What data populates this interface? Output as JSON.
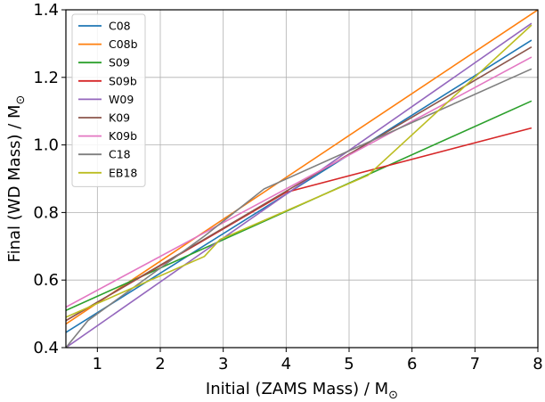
{
  "chart_data": {
    "type": "line",
    "xlabel": "Initial (ZAMS Mass) / M",
    "ylabel": "Final (WD Mass) / M",
    "unit_symbol": "⊙",
    "xlim": [
      0.5,
      8.0
    ],
    "ylim": [
      0.4,
      1.4
    ],
    "xticks": [
      1,
      2,
      3,
      4,
      5,
      6,
      7,
      8
    ],
    "yticks": [
      0.4,
      0.6,
      0.8,
      1.0,
      1.2,
      1.4
    ],
    "xtick_labels": [
      "1",
      "2",
      "3",
      "4",
      "5",
      "6",
      "7",
      "8"
    ],
    "ytick_labels": [
      "0.4",
      "0.6",
      "0.8",
      "1.0",
      "1.2",
      "1.4"
    ],
    "grid": true,
    "legend_position": "top-left",
    "series": [
      {
        "name": "C08",
        "color": "#1f77b4",
        "x": [
          0.5,
          7.9
        ],
        "y": [
          0.445,
          1.31
        ]
      },
      {
        "name": "C08b",
        "color": "#ff7f0e",
        "x": [
          0.5,
          8.0
        ],
        "y": [
          0.47,
          1.4
        ]
      },
      {
        "name": "S09",
        "color": "#2ca02c",
        "x": [
          0.5,
          7.9
        ],
        "y": [
          0.51,
          1.13
        ]
      },
      {
        "name": "S09b",
        "color": "#d62728",
        "x": [
          0.5,
          4.0,
          7.9
        ],
        "y": [
          0.48,
          0.86,
          1.05
        ]
      },
      {
        "name": "W09",
        "color": "#9467bd",
        "x": [
          0.5,
          7.9
        ],
        "y": [
          0.4,
          1.36
        ]
      },
      {
        "name": "K09",
        "color": "#8c564b",
        "x": [
          0.5,
          7.9
        ],
        "y": [
          0.48,
          1.29
        ]
      },
      {
        "name": "K09b",
        "color": "#e377c2",
        "x": [
          0.5,
          7.9
        ],
        "y": [
          0.52,
          1.26
        ]
      },
      {
        "name": "C18",
        "color": "#7f7f7f",
        "x": [
          0.5,
          0.85,
          2.7,
          3.65,
          7.9
        ],
        "y": [
          0.4,
          0.48,
          0.73,
          0.87,
          1.225
        ]
      },
      {
        "name": "EB18",
        "color": "#bcbd22",
        "x": [
          0.5,
          2.7,
          2.95,
          5.3,
          7.9
        ],
        "y": [
          0.49,
          0.67,
          0.72,
          0.91,
          1.355
        ]
      }
    ]
  }
}
